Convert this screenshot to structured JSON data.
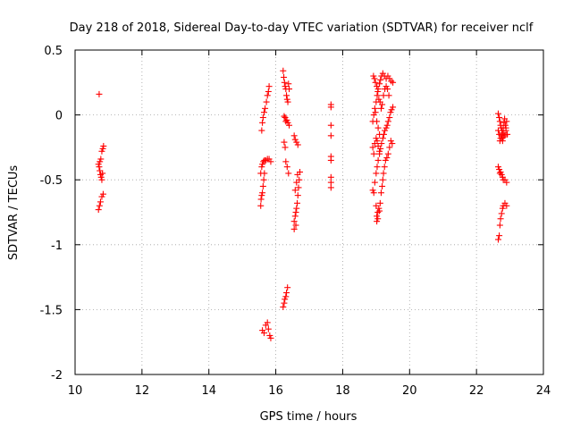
{
  "chart_data": {
    "type": "scatter",
    "title": "Day 218 of 2018, Sidereal Day-to-day VTEC variation (SDTVAR) for receiver nclf",
    "xlabel": "GPS time / hours",
    "ylabel": "SDTVAR / TECUs",
    "xlim": [
      10,
      24
    ],
    "ylim": [
      -2,
      0.5
    ],
    "xticks": [
      10,
      12,
      14,
      16,
      18,
      20,
      22,
      24
    ],
    "yticks": [
      0.5,
      0,
      -0.5,
      -1,
      -1.5,
      -2
    ],
    "grid": true,
    "marker": "+",
    "color": "#ff0000",
    "series": [
      {
        "name": "SDTVAR",
        "points": [
          [
            10.72,
            0.16
          ],
          [
            10.7,
            -0.38
          ],
          [
            10.72,
            -0.4
          ],
          [
            10.74,
            -0.43
          ],
          [
            10.76,
            -0.46
          ],
          [
            10.78,
            -0.48
          ],
          [
            10.8,
            -0.5
          ],
          [
            10.82,
            -0.45
          ],
          [
            10.74,
            -0.36
          ],
          [
            10.77,
            -0.34
          ],
          [
            10.8,
            -0.28
          ],
          [
            10.83,
            -0.26
          ],
          [
            10.85,
            -0.24
          ],
          [
            10.7,
            -0.73
          ],
          [
            10.73,
            -0.7
          ],
          [
            10.76,
            -0.67
          ],
          [
            10.8,
            -0.63
          ],
          [
            10.84,
            -0.61
          ],
          [
            15.55,
            -0.7
          ],
          [
            15.56,
            -0.65
          ],
          [
            15.58,
            -0.62
          ],
          [
            15.6,
            -0.6
          ],
          [
            15.62,
            -0.55
          ],
          [
            15.64,
            -0.5
          ],
          [
            15.66,
            -0.45
          ],
          [
            15.55,
            -0.45
          ],
          [
            15.58,
            -0.4
          ],
          [
            15.6,
            -0.38
          ],
          [
            15.63,
            -0.36
          ],
          [
            15.66,
            -0.35
          ],
          [
            15.7,
            -0.35
          ],
          [
            15.75,
            -0.34
          ],
          [
            15.8,
            -0.34
          ],
          [
            15.85,
            -0.36
          ],
          [
            15.58,
            -0.12
          ],
          [
            15.6,
            -0.06
          ],
          [
            15.62,
            -0.02
          ],
          [
            15.65,
            0.02
          ],
          [
            15.68,
            0.05
          ],
          [
            15.72,
            0.1
          ],
          [
            15.75,
            0.15
          ],
          [
            15.78,
            0.18
          ],
          [
            15.8,
            0.22
          ],
          [
            15.6,
            -1.66
          ],
          [
            15.65,
            -1.68
          ],
          [
            15.7,
            -1.62
          ],
          [
            15.75,
            -1.6
          ],
          [
            15.78,
            -1.65
          ],
          [
            15.82,
            -1.7
          ],
          [
            15.85,
            -1.72
          ],
          [
            16.22,
            -1.48
          ],
          [
            16.25,
            -1.45
          ],
          [
            16.27,
            -1.42
          ],
          [
            16.3,
            -1.4
          ],
          [
            16.32,
            -1.37
          ],
          [
            16.35,
            -1.33
          ],
          [
            16.22,
            0.34
          ],
          [
            16.24,
            0.29
          ],
          [
            16.26,
            0.25
          ],
          [
            16.28,
            0.22
          ],
          [
            16.3,
            0.2
          ],
          [
            16.32,
            0.15
          ],
          [
            16.34,
            0.12
          ],
          [
            16.36,
            0.1
          ],
          [
            16.38,
            0.24
          ],
          [
            16.4,
            0.2
          ],
          [
            16.25,
            -0.01
          ],
          [
            16.28,
            -0.02
          ],
          [
            16.3,
            -0.05
          ],
          [
            16.33,
            -0.04
          ],
          [
            16.36,
            -0.06
          ],
          [
            16.4,
            -0.08
          ],
          [
            16.25,
            -0.21
          ],
          [
            16.28,
            -0.25
          ],
          [
            16.3,
            -0.36
          ],
          [
            16.34,
            -0.4
          ],
          [
            16.38,
            -0.45
          ],
          [
            16.55,
            -0.82
          ],
          [
            16.58,
            -0.78
          ],
          [
            16.6,
            -0.75
          ],
          [
            16.62,
            -0.72
          ],
          [
            16.64,
            -0.68
          ],
          [
            16.66,
            -0.62
          ],
          [
            16.68,
            -0.56
          ],
          [
            16.7,
            -0.5
          ],
          [
            16.72,
            -0.44
          ],
          [
            16.55,
            -0.88
          ],
          [
            16.6,
            -0.85
          ],
          [
            16.58,
            -0.58
          ],
          [
            16.62,
            -0.52
          ],
          [
            16.65,
            -0.46
          ],
          [
            16.55,
            -0.16
          ],
          [
            16.58,
            -0.19
          ],
          [
            16.62,
            -0.21
          ],
          [
            16.66,
            -0.23
          ],
          [
            17.65,
            0.08
          ],
          [
            17.65,
            0.06
          ],
          [
            17.65,
            -0.08
          ],
          [
            17.65,
            -0.16
          ],
          [
            17.65,
            -0.32
          ],
          [
            17.65,
            -0.35
          ],
          [
            17.65,
            -0.48
          ],
          [
            17.65,
            -0.52
          ],
          [
            17.65,
            -0.56
          ],
          [
            18.9,
            -0.58
          ],
          [
            18.93,
            -0.6
          ],
          [
            18.96,
            -0.52
          ],
          [
            19.0,
            -0.45
          ],
          [
            19.03,
            -0.4
          ],
          [
            19.06,
            -0.35
          ],
          [
            19.1,
            -0.3
          ],
          [
            19.13,
            -0.26
          ],
          [
            19.16,
            -0.22
          ],
          [
            19.2,
            -0.18
          ],
          [
            19.23,
            -0.15
          ],
          [
            19.26,
            -0.12
          ],
          [
            19.3,
            -0.1
          ],
          [
            19.33,
            -0.08
          ],
          [
            19.36,
            -0.05
          ],
          [
            19.4,
            -0.02
          ],
          [
            19.43,
            0.02
          ],
          [
            19.46,
            0.04
          ],
          [
            19.5,
            0.06
          ],
          [
            18.9,
            -0.25
          ],
          [
            18.93,
            -0.3
          ],
          [
            18.96,
            -0.22
          ],
          [
            19.0,
            -0.18
          ],
          [
            19.03,
            -0.2
          ],
          [
            19.06,
            -0.24
          ],
          [
            19.1,
            -0.28
          ],
          [
            18.9,
            -0.05
          ],
          [
            18.93,
            0.0
          ],
          [
            18.96,
            0.05
          ],
          [
            19.0,
            0.1
          ],
          [
            19.03,
            0.15
          ],
          [
            19.06,
            0.2
          ],
          [
            19.1,
            0.24
          ],
          [
            19.13,
            0.27
          ],
          [
            19.16,
            0.3
          ],
          [
            19.2,
            0.32
          ],
          [
            19.25,
            0.3
          ],
          [
            19.3,
            0.28
          ],
          [
            19.35,
            0.3
          ],
          [
            19.4,
            0.28
          ],
          [
            19.45,
            0.26
          ],
          [
            19.5,
            0.25
          ],
          [
            18.92,
            0.3
          ],
          [
            18.95,
            0.28
          ],
          [
            18.98,
            0.25
          ],
          [
            19.02,
            0.22
          ],
          [
            19.05,
            0.18
          ],
          [
            19.08,
            0.12
          ],
          [
            19.12,
            0.1
          ],
          [
            19.15,
            0.05
          ],
          [
            19.18,
            0.08
          ],
          [
            19.22,
            0.15
          ],
          [
            19.26,
            0.2
          ],
          [
            19.3,
            0.22
          ],
          [
            19.34,
            0.2
          ],
          [
            19.38,
            0.15
          ],
          [
            18.98,
            0.02
          ],
          [
            19.02,
            -0.05
          ],
          [
            19.06,
            -0.1
          ],
          [
            19.1,
            -0.15
          ],
          [
            19.0,
            -0.7
          ],
          [
            19.02,
            -0.78
          ],
          [
            19.05,
            -0.75
          ],
          [
            19.08,
            -0.72
          ],
          [
            19.12,
            -0.68
          ],
          [
            19.15,
            -0.6
          ],
          [
            19.18,
            -0.55
          ],
          [
            19.2,
            -0.5
          ],
          [
            19.22,
            -0.45
          ],
          [
            19.25,
            -0.4
          ],
          [
            19.28,
            -0.35
          ],
          [
            19.32,
            -0.33
          ],
          [
            19.36,
            -0.3
          ],
          [
            19.4,
            -0.25
          ],
          [
            19.44,
            -0.2
          ],
          [
            19.48,
            -0.22
          ],
          [
            19.02,
            -0.82
          ],
          [
            19.05,
            -0.8
          ],
          [
            19.1,
            -0.74
          ],
          [
            22.65,
            0.01
          ],
          [
            22.68,
            -0.02
          ],
          [
            22.7,
            -0.05
          ],
          [
            22.72,
            -0.08
          ],
          [
            22.74,
            -0.1
          ],
          [
            22.76,
            -0.12
          ],
          [
            22.78,
            -0.14
          ],
          [
            22.8,
            -0.1
          ],
          [
            22.82,
            -0.06
          ],
          [
            22.84,
            -0.03
          ],
          [
            22.86,
            -0.08
          ],
          [
            22.88,
            -0.12
          ],
          [
            22.9,
            -0.05
          ],
          [
            22.92,
            -0.15
          ],
          [
            22.65,
            -0.12
          ],
          [
            22.68,
            -0.15
          ],
          [
            22.7,
            -0.2
          ],
          [
            22.72,
            -0.18
          ],
          [
            22.74,
            -0.16
          ],
          [
            22.76,
            -0.18
          ],
          [
            22.78,
            -0.2
          ],
          [
            22.8,
            -0.17
          ],
          [
            22.82,
            -0.14
          ],
          [
            22.85,
            -0.16
          ],
          [
            22.88,
            -0.1
          ],
          [
            22.65,
            -0.4
          ],
          [
            22.68,
            -0.42
          ],
          [
            22.7,
            -0.45
          ],
          [
            22.72,
            -0.44
          ],
          [
            22.75,
            -0.46
          ],
          [
            22.78,
            -0.48
          ],
          [
            22.8,
            -0.5
          ],
          [
            22.85,
            -0.5
          ],
          [
            22.9,
            -0.52
          ],
          [
            22.65,
            -0.96
          ],
          [
            22.68,
            -0.93
          ],
          [
            22.7,
            -0.85
          ],
          [
            22.72,
            -0.8
          ],
          [
            22.75,
            -0.76
          ],
          [
            22.78,
            -0.72
          ],
          [
            22.8,
            -0.7
          ],
          [
            22.85,
            -0.68
          ],
          [
            22.9,
            -0.7
          ]
        ]
      }
    ]
  }
}
